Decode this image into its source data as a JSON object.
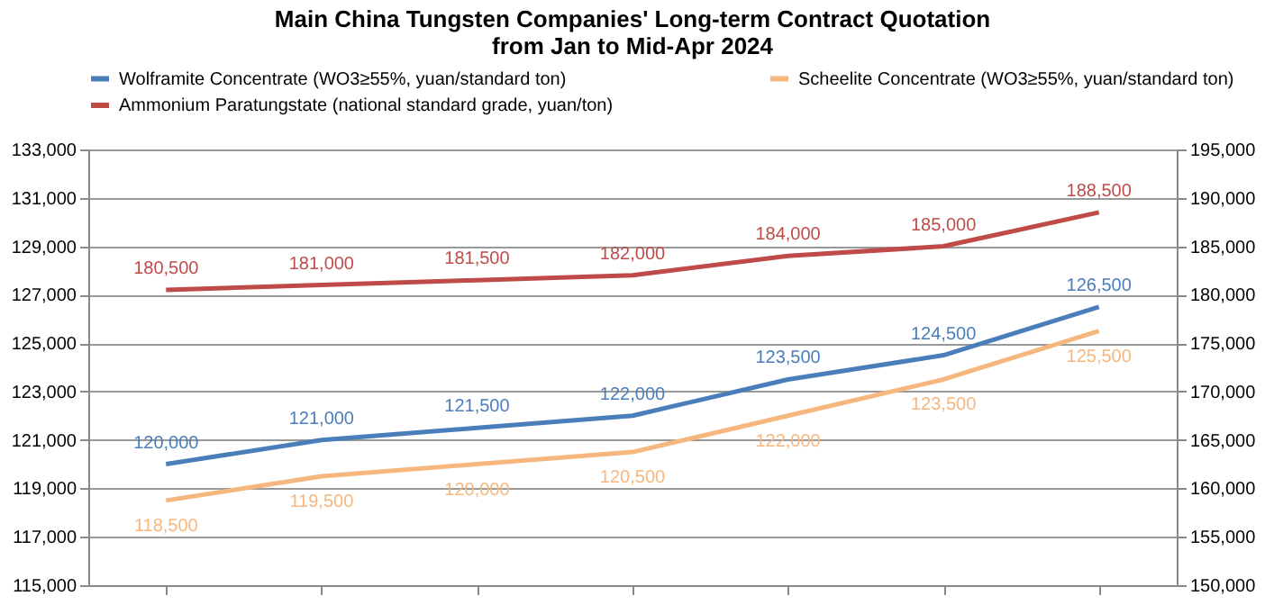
{
  "chart_data": {
    "type": "line",
    "title": "Main China Tungsten Companies' Long-term Contract Quotation\nfrom Jan to Mid-Apr 2024",
    "categories": [
      null,
      null,
      null,
      null,
      null,
      null,
      null
    ],
    "series": [
      {
        "name": "Wolframite Concentrate (WO3≥55%, yuan/standard ton)",
        "color": "#4a7ebb",
        "values": [
          120000,
          121000,
          121500,
          122000,
          123500,
          124500,
          126500
        ],
        "value_labels": [
          "120,000",
          "121,000",
          "121,500",
          "122,000",
          "123,500",
          "124,500",
          "126,500"
        ]
      },
      {
        "name": "Scheelite Concentrate (WO3≥55%, yuan/standard ton)",
        "color": "#f6b77e",
        "values": [
          118500,
          119500,
          120000,
          120500,
          122000,
          123500,
          125500
        ],
        "value_labels": [
          "118,500",
          "119,500",
          "120,000",
          "120,500",
          "122,000",
          "123,500",
          "125,500"
        ]
      },
      {
        "name": "Ammonium Paratungstate (national standard grade, yuan/ton)",
        "color": "#be4b48",
        "values": [
          180500,
          181000,
          181500,
          182000,
          184000,
          185000,
          188500
        ],
        "axis": "y2",
        "value_labels": [
          "180,500",
          "181,000",
          "181,500",
          "182,000",
          "184,000",
          "185,000",
          "188,500"
        ]
      }
    ],
    "ylim": [
      115000,
      133000
    ],
    "yticks": [
      {
        "value": 115000,
        "label": "115,000"
      },
      {
        "value": 117000,
        "label": "117,000"
      },
      {
        "value": 119000,
        "label": "119,000"
      },
      {
        "value": 121000,
        "label": "121,000"
      },
      {
        "value": 123000,
        "label": "123,000"
      },
      {
        "value": 125000,
        "label": "125,000"
      },
      {
        "value": 127000,
        "label": "127,000"
      },
      {
        "value": 129000,
        "label": "129,000"
      },
      {
        "value": 131000,
        "label": "131,000"
      },
      {
        "value": 133000,
        "label": "133,000"
      }
    ],
    "y2lim": [
      150000,
      195000
    ],
    "y2ticks": [
      {
        "value": 150000,
        "label": "150,000"
      },
      {
        "value": 155000,
        "label": "155,000"
      },
      {
        "value": 160000,
        "label": "160,000"
      },
      {
        "value": 165000,
        "label": "165,000"
      },
      {
        "value": 170000,
        "label": "170,000"
      },
      {
        "value": 175000,
        "label": "175,000"
      },
      {
        "value": 180000,
        "label": "180,000"
      },
      {
        "value": 185000,
        "label": "185,000"
      },
      {
        "value": 190000,
        "label": "190,000"
      },
      {
        "value": 195000,
        "label": "195,000"
      }
    ],
    "grid": "y",
    "legend": "top",
    "tick_labels": "y",
    "marker": "none",
    "line_style": "solid"
  }
}
